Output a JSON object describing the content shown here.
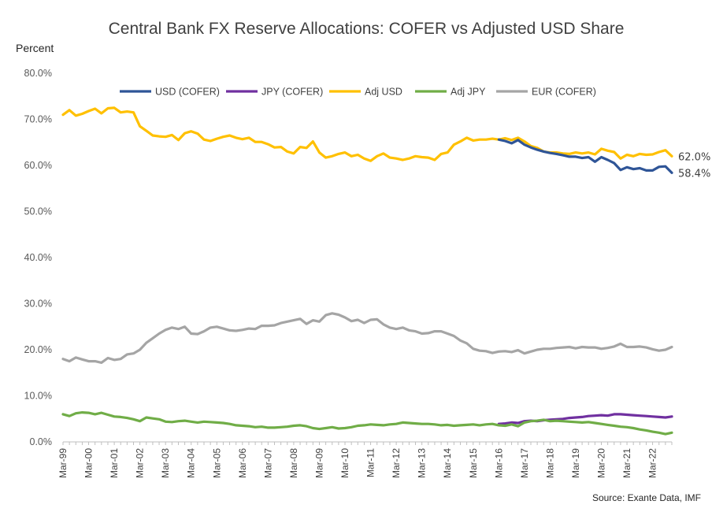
{
  "chart_data": {
    "type": "line",
    "title": "Central Bank FX Reserve Allocations: COFER vs Adjusted USD Share",
    "ylabel": "Percent",
    "xlabel": "",
    "ylim": [
      0,
      80
    ],
    "yticks": [
      "0.0%",
      "10.0%",
      "20.0%",
      "30.0%",
      "40.0%",
      "50.0%",
      "60.0%",
      "70.0%",
      "80.0%"
    ],
    "grid": false,
    "legend_position": "top",
    "x_ticks": [
      "Mar-99",
      "Mar-00",
      "Mar-01",
      "Mar-02",
      "Mar-03",
      "Mar-04",
      "Mar-05",
      "Mar-06",
      "Mar-07",
      "Mar-08",
      "Mar-09",
      "Mar-10",
      "Mar-11",
      "Mar-12",
      "Mar-13",
      "Mar-14",
      "Mar-15",
      "Mar-16",
      "Mar-17",
      "Mar-18",
      "Mar-19",
      "Mar-20",
      "Mar-21",
      "Mar-22"
    ],
    "x_start": 1999.0,
    "x_end": 2022.75,
    "series": [
      {
        "name": "USD (COFER)",
        "color": "#2F5597",
        "x": [
          2016.0,
          2016.25,
          2016.5,
          2016.75,
          2017.0,
          2017.25,
          2017.5,
          2017.75,
          2018.0,
          2018.25,
          2018.5,
          2018.75,
          2019.0,
          2019.25,
          2019.5,
          2019.75,
          2020.0,
          2020.25,
          2020.5,
          2020.75,
          2021.0,
          2021.25,
          2021.5,
          2021.75,
          2022.0,
          2022.25,
          2022.5,
          2022.75
        ],
        "values": [
          65.6,
          65.3,
          64.8,
          65.5,
          64.5,
          63.9,
          63.4,
          63.0,
          62.7,
          62.5,
          62.2,
          61.9,
          61.9,
          61.6,
          61.8,
          60.8,
          61.8,
          61.2,
          60.5,
          59.0,
          59.6,
          59.2,
          59.4,
          58.9,
          58.9,
          59.7,
          59.8,
          58.4
        ]
      },
      {
        "name": "JPY (COFER)",
        "color": "#7030A0",
        "x": [
          2016.0,
          2016.25,
          2016.5,
          2016.75,
          2017.0,
          2017.25,
          2017.5,
          2017.75,
          2018.0,
          2018.25,
          2018.5,
          2018.75,
          2019.0,
          2019.25,
          2019.5,
          2019.75,
          2020.0,
          2020.25,
          2020.5,
          2020.75,
          2021.0,
          2021.25,
          2021.5,
          2021.75,
          2022.0,
          2022.25,
          2022.5,
          2022.75
        ],
        "values": [
          3.9,
          4.0,
          4.2,
          4.1,
          4.5,
          4.6,
          4.5,
          4.7,
          4.8,
          4.9,
          5.0,
          5.2,
          5.3,
          5.4,
          5.6,
          5.7,
          5.8,
          5.7,
          6.0,
          6.0,
          5.9,
          5.8,
          5.7,
          5.6,
          5.5,
          5.4,
          5.3,
          5.5
        ]
      },
      {
        "name": "Adj USD",
        "color": "#FFC000",
        "x": [
          1999.0,
          1999.25,
          1999.5,
          1999.75,
          2000.0,
          2000.25,
          2000.5,
          2000.75,
          2001.0,
          2001.25,
          2001.5,
          2001.75,
          2002.0,
          2002.25,
          2002.5,
          2002.75,
          2003.0,
          2003.25,
          2003.5,
          2003.75,
          2004.0,
          2004.25,
          2004.5,
          2004.75,
          2005.0,
          2005.25,
          2005.5,
          2005.75,
          2006.0,
          2006.25,
          2006.5,
          2006.75,
          2007.0,
          2007.25,
          2007.5,
          2007.75,
          2008.0,
          2008.25,
          2008.5,
          2008.75,
          2009.0,
          2009.25,
          2009.5,
          2009.75,
          2010.0,
          2010.25,
          2010.5,
          2010.75,
          2011.0,
          2011.25,
          2011.5,
          2011.75,
          2012.0,
          2012.25,
          2012.5,
          2012.75,
          2013.0,
          2013.25,
          2013.5,
          2013.75,
          2014.0,
          2014.25,
          2014.5,
          2014.75,
          2015.0,
          2015.25,
          2015.5,
          2015.75,
          2016.0,
          2016.25,
          2016.5,
          2016.75,
          2017.0,
          2017.25,
          2017.5,
          2017.75,
          2018.0,
          2018.25,
          2018.5,
          2018.75,
          2019.0,
          2019.25,
          2019.5,
          2019.75,
          2020.0,
          2020.25,
          2020.5,
          2020.75,
          2021.0,
          2021.25,
          2021.5,
          2021.75,
          2022.0,
          2022.25,
          2022.5,
          2022.75
        ],
        "values": [
          71.0,
          72.0,
          70.8,
          71.2,
          71.8,
          72.3,
          71.3,
          72.4,
          72.5,
          71.5,
          71.7,
          71.5,
          68.5,
          67.5,
          66.5,
          66.3,
          66.2,
          66.6,
          65.5,
          67.0,
          67.4,
          66.9,
          65.6,
          65.3,
          65.8,
          66.2,
          66.5,
          66.0,
          65.7,
          66.0,
          65.1,
          65.1,
          64.6,
          63.9,
          64.0,
          63.0,
          62.6,
          64.0,
          63.8,
          65.2,
          62.8,
          61.7,
          62.0,
          62.5,
          62.8,
          62.0,
          62.3,
          61.5,
          61.0,
          62.0,
          62.6,
          61.7,
          61.5,
          61.2,
          61.5,
          62.0,
          61.8,
          61.7,
          61.2,
          62.5,
          62.8,
          64.5,
          65.2,
          66.0,
          65.4,
          65.6,
          65.6,
          65.8,
          65.6,
          65.9,
          65.5,
          66.0,
          65.2,
          64.2,
          63.8,
          63.0,
          62.8,
          62.8,
          62.6,
          62.5,
          62.8,
          62.6,
          62.8,
          62.4,
          63.6,
          63.2,
          62.9,
          61.5,
          62.3,
          62.0,
          62.5,
          62.3,
          62.4,
          62.9,
          63.3,
          62.0
        ]
      },
      {
        "name": "Adj JPY",
        "color": "#70AD47",
        "x": [
          1999.0,
          1999.25,
          1999.5,
          1999.75,
          2000.0,
          2000.25,
          2000.5,
          2000.75,
          2001.0,
          2001.25,
          2001.5,
          2001.75,
          2002.0,
          2002.25,
          2002.5,
          2002.75,
          2003.0,
          2003.25,
          2003.5,
          2003.75,
          2004.0,
          2004.25,
          2004.5,
          2004.75,
          2005.0,
          2005.25,
          2005.5,
          2005.75,
          2006.0,
          2006.25,
          2006.5,
          2006.75,
          2007.0,
          2007.25,
          2007.5,
          2007.75,
          2008.0,
          2008.25,
          2008.5,
          2008.75,
          2009.0,
          2009.25,
          2009.5,
          2009.75,
          2010.0,
          2010.25,
          2010.5,
          2010.75,
          2011.0,
          2011.25,
          2011.5,
          2011.75,
          2012.0,
          2012.25,
          2012.5,
          2012.75,
          2013.0,
          2013.25,
          2013.5,
          2013.75,
          2014.0,
          2014.25,
          2014.5,
          2014.75,
          2015.0,
          2015.25,
          2015.5,
          2015.75,
          2016.0,
          2016.25,
          2016.5,
          2016.75,
          2017.0,
          2017.25,
          2017.5,
          2017.75,
          2018.0,
          2018.25,
          2018.5,
          2018.75,
          2019.0,
          2019.25,
          2019.5,
          2019.75,
          2020.0,
          2020.25,
          2020.5,
          2020.75,
          2021.0,
          2021.25,
          2021.5,
          2021.75,
          2022.0,
          2022.25,
          2022.5,
          2022.75
        ],
        "values": [
          6.0,
          5.6,
          6.2,
          6.4,
          6.3,
          6.0,
          6.3,
          5.9,
          5.5,
          5.4,
          5.2,
          4.9,
          4.5,
          5.3,
          5.1,
          4.9,
          4.4,
          4.3,
          4.5,
          4.6,
          4.4,
          4.2,
          4.4,
          4.3,
          4.2,
          4.1,
          3.9,
          3.6,
          3.5,
          3.4,
          3.2,
          3.3,
          3.1,
          3.1,
          3.2,
          3.3,
          3.5,
          3.6,
          3.4,
          3.0,
          2.8,
          3.0,
          3.2,
          2.9,
          3.0,
          3.2,
          3.5,
          3.6,
          3.8,
          3.7,
          3.6,
          3.8,
          3.9,
          4.2,
          4.1,
          4.0,
          3.9,
          3.9,
          3.8,
          3.6,
          3.7,
          3.5,
          3.6,
          3.7,
          3.8,
          3.6,
          3.8,
          3.9,
          3.6,
          3.5,
          3.8,
          3.4,
          4.2,
          4.5,
          4.6,
          4.8,
          4.5,
          4.6,
          4.5,
          4.4,
          4.3,
          4.2,
          4.3,
          4.1,
          3.9,
          3.7,
          3.5,
          3.3,
          3.2,
          3.0,
          2.7,
          2.5,
          2.2,
          2.0,
          1.7,
          2.0
        ]
      },
      {
        "name": "EUR (COFER)",
        "color": "#A5A5A5",
        "x": [
          1999.0,
          1999.25,
          1999.5,
          1999.75,
          2000.0,
          2000.25,
          2000.5,
          2000.75,
          2001.0,
          2001.25,
          2001.5,
          2001.75,
          2002.0,
          2002.25,
          2002.5,
          2002.75,
          2003.0,
          2003.25,
          2003.5,
          2003.75,
          2004.0,
          2004.25,
          2004.5,
          2004.75,
          2005.0,
          2005.25,
          2005.5,
          2005.75,
          2006.0,
          2006.25,
          2006.5,
          2006.75,
          2007.0,
          2007.25,
          2007.5,
          2007.75,
          2008.0,
          2008.25,
          2008.5,
          2008.75,
          2009.0,
          2009.25,
          2009.5,
          2009.75,
          2010.0,
          2010.25,
          2010.5,
          2010.75,
          2011.0,
          2011.25,
          2011.5,
          2011.75,
          2012.0,
          2012.25,
          2012.5,
          2012.75,
          2013.0,
          2013.25,
          2013.5,
          2013.75,
          2014.0,
          2014.25,
          2014.5,
          2014.75,
          2015.0,
          2015.25,
          2015.5,
          2015.75,
          2016.0,
          2016.25,
          2016.5,
          2016.75,
          2017.0,
          2017.25,
          2017.5,
          2017.75,
          2018.0,
          2018.25,
          2018.5,
          2018.75,
          2019.0,
          2019.25,
          2019.5,
          2019.75,
          2020.0,
          2020.25,
          2020.5,
          2020.75,
          2021.0,
          2021.25,
          2021.5,
          2021.75,
          2022.0,
          2022.25,
          2022.5,
          2022.75
        ],
        "values": [
          18.0,
          17.5,
          18.3,
          17.9,
          17.5,
          17.5,
          17.2,
          18.2,
          17.8,
          18.0,
          19.0,
          19.2,
          20.0,
          21.5,
          22.5,
          23.5,
          24.3,
          24.8,
          24.5,
          25.0,
          23.5,
          23.4,
          24.0,
          24.8,
          25.0,
          24.6,
          24.2,
          24.1,
          24.3,
          24.6,
          24.5,
          25.2,
          25.2,
          25.3,
          25.8,
          26.1,
          26.4,
          26.7,
          25.6,
          26.4,
          26.1,
          27.5,
          27.9,
          27.6,
          27.0,
          26.2,
          26.5,
          25.8,
          26.5,
          26.6,
          25.5,
          24.8,
          24.5,
          24.8,
          24.2,
          24.0,
          23.5,
          23.6,
          24.0,
          24.0,
          23.5,
          23.0,
          22.0,
          21.4,
          20.2,
          19.8,
          19.7,
          19.3,
          19.6,
          19.7,
          19.5,
          19.9,
          19.2,
          19.6,
          20.0,
          20.2,
          20.2,
          20.4,
          20.5,
          20.6,
          20.3,
          20.6,
          20.5,
          20.5,
          20.2,
          20.4,
          20.7,
          21.3,
          20.6,
          20.6,
          20.7,
          20.5,
          20.1,
          19.8,
          20.0,
          20.6
        ]
      }
    ],
    "end_labels": [
      {
        "text": "62.0%",
        "value": 62.0,
        "series": "Adj USD"
      },
      {
        "text": "58.4%",
        "value": 58.4,
        "series": "USD (COFER)"
      }
    ],
    "source": "Source: Exante Data, IMF"
  }
}
